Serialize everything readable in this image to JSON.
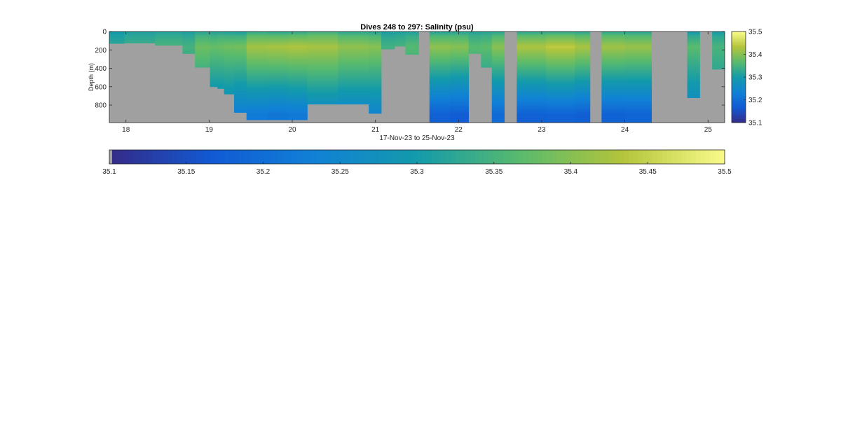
{
  "chart_data": {
    "type": "heatmap",
    "title": "Dives 248 to 297: Salinity (psu)",
    "xlabel": "17-Nov-23 to 25-Nov-23",
    "ylabel": "Depth (m)",
    "x_unit": "day of Nov-2023",
    "xlim": [
      17.8,
      25.2
    ],
    "ylim": [
      990,
      0
    ],
    "x_ticks": [
      18,
      19,
      20,
      21,
      22,
      23,
      24,
      25
    ],
    "x_tick_labels": [
      "18",
      "19",
      "20",
      "21",
      "22",
      "23",
      "24",
      "25"
    ],
    "y_ticks": [
      0,
      200,
      400,
      600,
      800
    ],
    "y_tick_labels": [
      "0",
      "200",
      "400",
      "600",
      "800"
    ],
    "colorbar": {
      "colormap": "parula",
      "range": [
        35.1,
        35.5
      ],
      "ticks": [
        35.1,
        35.2,
        35.3,
        35.4,
        35.5
      ],
      "tick_labels": [
        "35.1",
        "35.2",
        "35.3",
        "35.4",
        "35.5"
      ]
    },
    "missing_color": "#a0a0a0",
    "profiles": [
      {
        "x": [
          17.8,
          17.98
        ],
        "max_depth": 130,
        "surface": 35.3,
        "peak": 35.33,
        "deep": 35.28
      },
      {
        "x": [
          17.98,
          18.35
        ],
        "max_depth": 125,
        "surface": 35.31,
        "peak": 35.34,
        "deep": 35.29
      },
      {
        "x": [
          18.35,
          18.68
        ],
        "max_depth": 150,
        "surface": 35.31,
        "peak": 35.35,
        "deep": 35.28
      },
      {
        "x": [
          18.68,
          18.83
        ],
        "max_depth": 240,
        "surface": 35.31,
        "peak": 35.35,
        "deep": 35.28
      },
      {
        "x": [
          18.83,
          19.01
        ],
        "max_depth": 390,
        "surface": 35.32,
        "peak": 35.38,
        "deep": 35.27
      },
      {
        "x": [
          19.01,
          19.1
        ],
        "max_depth": 600,
        "surface": 35.32,
        "peak": 35.38,
        "deep": 35.25
      },
      {
        "x": [
          19.1,
          19.18
        ],
        "max_depth": 620,
        "surface": 35.32,
        "peak": 35.38,
        "deep": 35.24
      },
      {
        "x": [
          19.18,
          19.3
        ],
        "max_depth": 680,
        "surface": 35.31,
        "peak": 35.38,
        "deep": 35.24
      },
      {
        "x": [
          19.3,
          19.45
        ],
        "max_depth": 880,
        "surface": 35.31,
        "peak": 35.39,
        "deep": 35.23
      },
      {
        "x": [
          19.45,
          19.7
        ],
        "max_depth": 960,
        "surface": 35.33,
        "peak": 35.42,
        "deep": 35.22
      },
      {
        "x": [
          19.7,
          19.95
        ],
        "max_depth": 960,
        "surface": 35.33,
        "peak": 35.43,
        "deep": 35.22
      },
      {
        "x": [
          19.95,
          20.18
        ],
        "max_depth": 960,
        "surface": 35.33,
        "peak": 35.43,
        "deep": 35.22
      },
      {
        "x": [
          20.18,
          20.55
        ],
        "max_depth": 790,
        "surface": 35.34,
        "peak": 35.42,
        "deep": 35.24
      },
      {
        "x": [
          20.55,
          20.92
        ],
        "max_depth": 790,
        "surface": 35.33,
        "peak": 35.41,
        "deep": 35.24
      },
      {
        "x": [
          20.92,
          21.07
        ],
        "max_depth": 890,
        "surface": 35.32,
        "peak": 35.4,
        "deep": 35.24
      },
      {
        "x": [
          21.07,
          21.23
        ],
        "max_depth": 190,
        "surface": 35.31,
        "peak": 35.35,
        "deep": 35.3
      },
      {
        "x": [
          21.23,
          21.36
        ],
        "max_depth": 160,
        "surface": 35.31,
        "peak": 35.35,
        "deep": 35.3
      },
      {
        "x": [
          21.36,
          21.52
        ],
        "max_depth": 250,
        "surface": 35.31,
        "peak": 35.36,
        "deep": 35.28
      },
      {
        "x": [
          21.65,
          21.9
        ],
        "max_depth": 990,
        "surface": 35.32,
        "peak": 35.41,
        "deep": 35.18
      },
      {
        "x": [
          21.9,
          22.12
        ],
        "max_depth": 990,
        "surface": 35.32,
        "peak": 35.4,
        "deep": 35.17
      },
      {
        "x": [
          22.12,
          22.27
        ],
        "max_depth": 240,
        "surface": 35.32,
        "peak": 35.37,
        "deep": 35.28
      },
      {
        "x": [
          22.27,
          22.4
        ],
        "max_depth": 390,
        "surface": 35.32,
        "peak": 35.37,
        "deep": 35.26
      },
      {
        "x": [
          22.4,
          22.55
        ],
        "max_depth": 990,
        "surface": 35.32,
        "peak": 35.4,
        "deep": 35.19
      },
      {
        "x": [
          22.7,
          23.05
        ],
        "max_depth": 990,
        "surface": 35.33,
        "peak": 35.43,
        "deep": 35.18
      },
      {
        "x": [
          23.05,
          23.4
        ],
        "max_depth": 990,
        "surface": 35.33,
        "peak": 35.44,
        "deep": 35.18
      },
      {
        "x": [
          23.4,
          23.58
        ],
        "max_depth": 990,
        "surface": 35.33,
        "peak": 35.43,
        "deep": 35.18
      },
      {
        "x": [
          23.72,
          24.0
        ],
        "max_depth": 990,
        "surface": 35.33,
        "peak": 35.42,
        "deep": 35.18
      },
      {
        "x": [
          24.0,
          24.32
        ],
        "max_depth": 990,
        "surface": 35.32,
        "peak": 35.41,
        "deep": 35.18
      },
      {
        "x": [
          24.75,
          24.9
        ],
        "max_depth": 720,
        "surface": 35.3,
        "peak": 35.37,
        "deep": 35.24
      },
      {
        "x": [
          25.05,
          25.2
        ],
        "max_depth": 410,
        "surface": 35.3,
        "peak": 35.35,
        "deep": 35.28
      }
    ]
  }
}
